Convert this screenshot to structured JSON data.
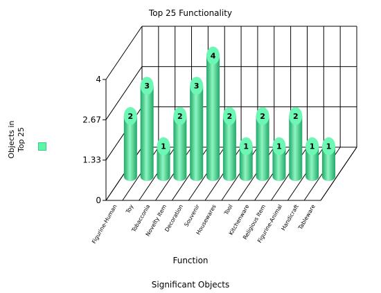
{
  "chart_data": {
    "type": "bar",
    "title": "Top 25 Functionality",
    "xlabel": "Function",
    "ylabel": "Objects in Top 25",
    "footer": "Significant Objects",
    "categories": [
      "Figurine-Human",
      "Toy",
      "Tobacconia",
      "Novelty Item",
      "Decoration",
      "Souvenir",
      "Housewares",
      "Tool",
      "Kitchenware",
      "Religious Item",
      "Figurine-Animal",
      "Handicraft",
      "Tableware"
    ],
    "values": [
      2,
      3,
      1,
      2,
      3,
      4,
      2,
      1,
      2,
      1,
      2,
      1,
      1
    ],
    "yticks": [
      "0",
      "1.33",
      "2.67",
      "4"
    ],
    "ylim": [
      0,
      4
    ],
    "grid": true,
    "colors": {
      "bar": "#3ddc8a",
      "bar_light": "#8ff5c2",
      "bar_dark": "#1fa866",
      "top": "#6cf7b4"
    }
  }
}
